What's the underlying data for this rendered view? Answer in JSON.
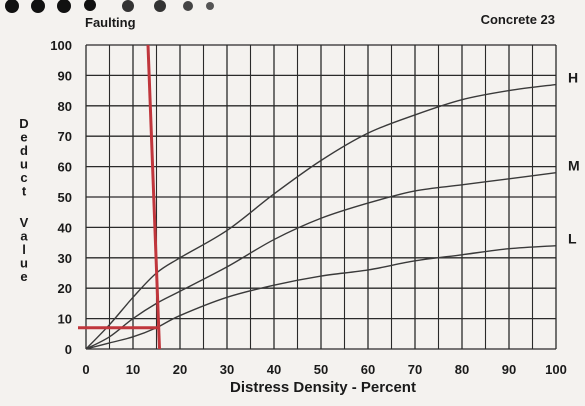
{
  "header": {
    "left_title": "Faulting",
    "right_title": "Concrete 23"
  },
  "chart_data": {
    "type": "line",
    "xlabel": "Distress Density - Percent",
    "ylabel": "Deduct Value",
    "xlim": [
      0,
      100
    ],
    "ylim": [
      0,
      100
    ],
    "x_ticks": [
      0,
      10,
      20,
      30,
      40,
      50,
      60,
      70,
      80,
      90,
      100
    ],
    "y_ticks": [
      0,
      10,
      20,
      30,
      40,
      50,
      60,
      70,
      80,
      90,
      100
    ],
    "grid": true,
    "series": [
      {
        "name": "H",
        "color": "#3a3a3a",
        "x": [
          0,
          5,
          10,
          15,
          20,
          30,
          40,
          50,
          60,
          70,
          80,
          90,
          100
        ],
        "y": [
          0,
          8,
          17,
          25,
          30,
          39,
          51,
          62,
          71,
          77,
          82,
          85,
          87
        ]
      },
      {
        "name": "M",
        "color": "#3a3a3a",
        "x": [
          0,
          5,
          10,
          15,
          20,
          30,
          40,
          50,
          60,
          70,
          80,
          90,
          100
        ],
        "y": [
          0,
          4,
          10,
          15,
          19,
          27,
          36,
          43,
          48,
          52,
          54,
          56,
          58
        ]
      },
      {
        "name": "L",
        "color": "#3a3a3a",
        "x": [
          0,
          5,
          10,
          15,
          20,
          30,
          40,
          50,
          60,
          70,
          80,
          90,
          100
        ],
        "y": [
          0,
          2,
          4,
          7,
          11,
          17,
          21,
          24,
          26,
          29,
          31,
          33,
          34
        ]
      }
    ],
    "annotations": [
      {
        "type": "reference-lines",
        "color": "#c0363c",
        "x": 15,
        "y": 7
      }
    ]
  }
}
